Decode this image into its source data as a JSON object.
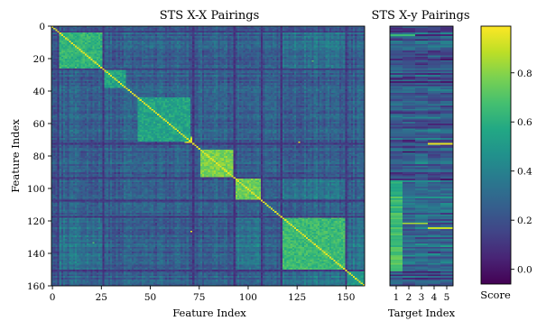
{
  "chart_data": [
    {
      "type": "heatmap",
      "title": "STS X-X Pairings",
      "xlabel": "Feature Index",
      "ylabel": "Feature Index",
      "xlim": [
        0,
        160
      ],
      "ylim": [
        160,
        0
      ],
      "x_ticks": [
        "0",
        "25",
        "50",
        "75",
        "100",
        "125",
        "150"
      ],
      "y_ticks": [
        "0",
        "20",
        "40",
        "60",
        "80",
        "100",
        "120",
        "140",
        "160"
      ],
      "matrix_size": 160,
      "colormap": "viridis",
      "diagonal_value": 0.95,
      "background_mean": 0.25,
      "high_blocks": [
        {
          "range": [
            4,
            26
          ],
          "value": 0.62
        },
        {
          "range": [
            27,
            37
          ],
          "value": 0.55
        },
        {
          "range": [
            44,
            70
          ],
          "value": 0.55
        },
        {
          "range": [
            68,
            72
          ],
          "value": 0.9
        },
        {
          "range": [
            76,
            92
          ],
          "value": 0.78
        },
        {
          "range": [
            93,
            106
          ],
          "value": 0.75
        },
        {
          "range": [
            118,
            150
          ],
          "value": 0.65
        },
        {
          "range": [
            150,
            160
          ],
          "value": 0.5
        }
      ],
      "low_bands": [
        3,
        26,
        72,
        93,
        107,
        117,
        150
      ],
      "bright_points": [
        {
          "row": 71,
          "col": 126,
          "value": 0.95
        },
        {
          "row": 21,
          "col": 133,
          "value": 0.7
        }
      ]
    },
    {
      "type": "heatmap",
      "title": "STS X-y Pairings",
      "xlabel": "Target Index",
      "ylabel": "",
      "x_ticks": [
        "1",
        "2",
        "3",
        "4",
        "5"
      ],
      "rows": 160,
      "cols": 5,
      "colormap": "viridis",
      "highlights": [
        {
          "row": 72,
          "cols": [
            4,
            5
          ],
          "value": 0.95
        },
        {
          "row": 121,
          "cols": [
            2,
            3
          ],
          "value": 0.85
        },
        {
          "row": 124,
          "cols": [
            4,
            5
          ],
          "value": 0.9
        },
        {
          "row": 5,
          "cols": [
            1,
            2
          ],
          "value": 0.65
        }
      ],
      "bright_ranges": [
        {
          "rows": [
            95,
            125
          ],
          "col": 1,
          "value": 0.55
        },
        {
          "rows": [
            125,
            150
          ],
          "col": 1,
          "value": 0.6
        }
      ]
    }
  ],
  "colorbar": {
    "label": "Score",
    "ticks": [
      "0.0",
      "0.2",
      "0.4",
      "0.6",
      "0.8"
    ],
    "tick_values": [
      0.0,
      0.2,
      0.4,
      0.6,
      0.8
    ],
    "range": [
      -0.06,
      0.99
    ]
  }
}
